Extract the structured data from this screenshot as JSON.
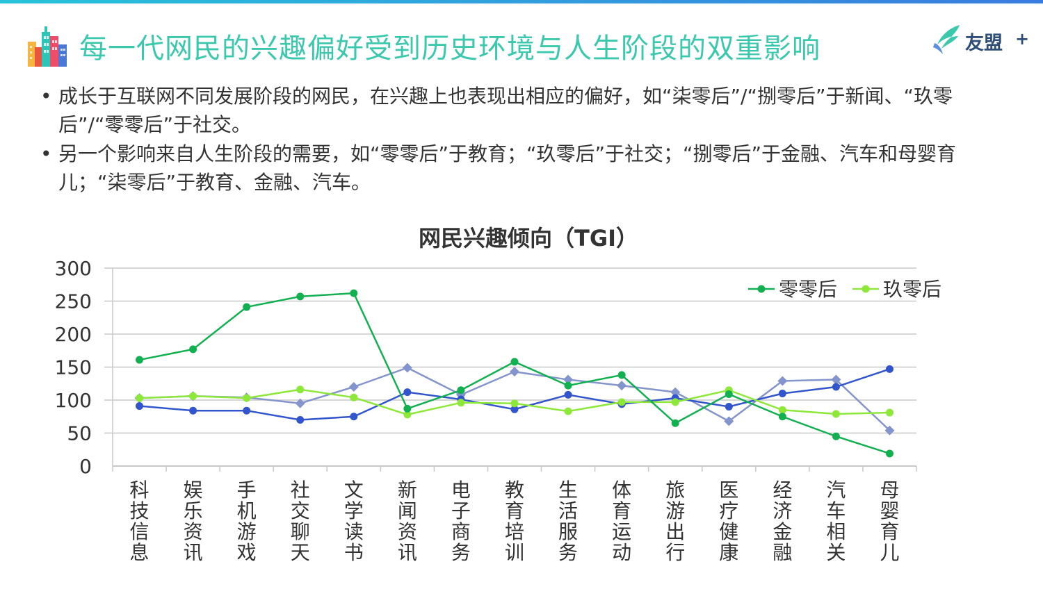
{
  "header": {
    "title": "每一代网民的兴趣偏好受到历史环境与人生阶段的双重影响",
    "logo_text": "友盟",
    "logo_plus": "+"
  },
  "bullets": [
    "成长于互联网不同发展阶段的网民，在兴趣上也表现出相应的偏好，如“柒零后”/“捌零后”于新闻、“玖零后”/“零零后”于社交。",
    "另一个影响来自人生阶段的需要，如“零零后”于教育；“玖零后”于社交；“捌零后”于金融、汽车和母婴育儿；“柒零后”于教育、金融、汽车。"
  ],
  "bullet_marker": "•",
  "colors": {
    "title": "#3cc8ad",
    "series_00": "#12b050",
    "series_90": "#8ee83a",
    "series_80": "#3355cc",
    "series_70": "#8494cc"
  },
  "chart_data": {
    "type": "line",
    "title": "网民兴趣倾向（TGI）",
    "xlabel": "",
    "ylabel": "",
    "ylim": [
      0,
      300
    ],
    "yticks": [
      0,
      50,
      100,
      150,
      200,
      250,
      300
    ],
    "grid": true,
    "legend_position": "top-right",
    "categories": [
      "科技信息",
      "娱乐资讯",
      "手机游戏",
      "社交聊天",
      "文学读书",
      "新闻资讯",
      "电子商务",
      "教育培训",
      "生活服务",
      "体育运动",
      "旅游出行",
      "医疗健康",
      "经济金融",
      "汽车相关",
      "母婴育儿"
    ],
    "series": [
      {
        "name": "零零后",
        "marker": "circle",
        "color": "#12b050",
        "in_legend": true,
        "values": [
          161,
          177,
          241,
          257,
          262,
          87,
          115,
          158,
          122,
          138,
          65,
          109,
          75,
          45,
          19
        ]
      },
      {
        "name": "玖零后",
        "marker": "circle",
        "color": "#8ee83a",
        "in_legend": true,
        "values": [
          103,
          106,
          103,
          116,
          104,
          78,
          96,
          95,
          83,
          97,
          97,
          115,
          85,
          79,
          81
        ]
      },
      {
        "marker": "circle",
        "color": "#3355cc",
        "in_legend": false,
        "values": [
          91,
          84,
          84,
          70,
          75,
          112,
          101,
          86,
          108,
          94,
          103,
          90,
          110,
          120,
          147
        ]
      },
      {
        "marker": "diamond",
        "color": "#8494cc",
        "in_legend": false,
        "values": [
          103,
          106,
          104,
          95,
          120,
          149,
          108,
          143,
          131,
          122,
          112,
          68,
          129,
          131,
          54
        ]
      }
    ]
  }
}
